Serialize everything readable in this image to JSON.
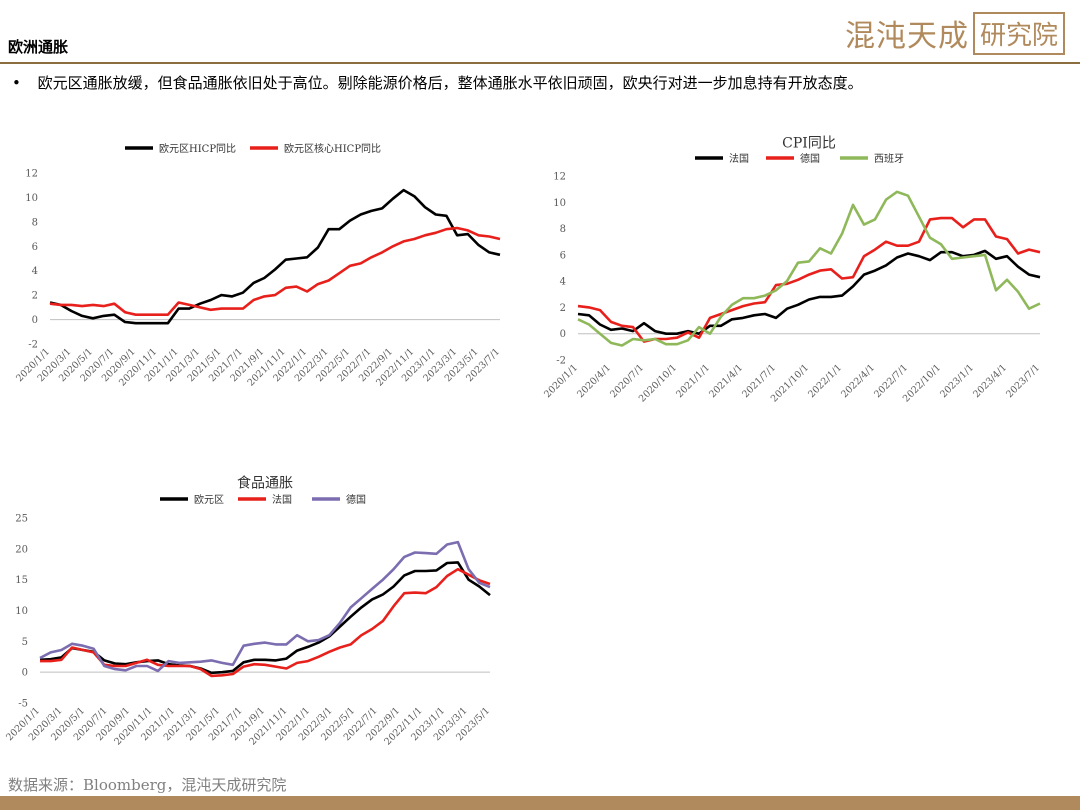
{
  "header": {
    "title": "欧洲通胀",
    "logo_main": "混沌天成",
    "logo_box": "研究院"
  },
  "bullet": {
    "marker": "•",
    "text": "欧元区通胀放缓，但食品通胀依旧处于高位。剔除能源价格后，整体通胀水平依旧顽固，欧央行对进一步加息持有开放态度。"
  },
  "source": "数据来源：Bloomberg，混沌天成研究院",
  "colors": {
    "accent": "#b08a5c",
    "black": "#000000",
    "red": "#e8201c",
    "green": "#8fb85a",
    "purple": "#7b6db0"
  },
  "chart_data": [
    {
      "type": "line",
      "title": "",
      "x_labels": [
        "2020/1/1",
        "2020/3/1",
        "2020/5/1",
        "2020/7/1",
        "2020/9/1",
        "2020/11/1",
        "2021/1/1",
        "2021/3/1",
        "2021/5/1",
        "2021/7/1",
        "2021/9/1",
        "2021/11/1",
        "2022/1/1",
        "2022/3/1",
        "2022/5/1",
        "2022/7/1",
        "2022/9/1",
        "2022/11/1",
        "2023/1/1",
        "2023/3/1",
        "2023/5/1",
        "2023/7/1"
      ],
      "ylim": [
        -2,
        12
      ],
      "yticks": [
        -2,
        0,
        2,
        4,
        6,
        8,
        10,
        12
      ],
      "legend_position": "top",
      "series": [
        {
          "name": "欧元区HICP同比",
          "color": "#000000",
          "values": [
            1.4,
            1.2,
            0.7,
            0.3,
            0.1,
            0.3,
            0.4,
            -0.2,
            -0.3,
            -0.3,
            -0.3,
            -0.3,
            0.9,
            0.9,
            1.3,
            1.6,
            2.0,
            1.9,
            2.2,
            3.0,
            3.4,
            4.1,
            4.9,
            5.0,
            5.1,
            5.9,
            7.4,
            7.4,
            8.1,
            8.6,
            8.9,
            9.1,
            9.9,
            10.6,
            10.1,
            9.2,
            8.6,
            8.5,
            6.9,
            7.0,
            6.1,
            5.5,
            5.3
          ]
        },
        {
          "name": "欧元区核心HICP同比",
          "color": "#e8201c",
          "values": [
            1.3,
            1.2,
            1.2,
            1.1,
            1.2,
            1.1,
            1.3,
            0.6,
            0.4,
            0.4,
            0.4,
            0.4,
            1.4,
            1.2,
            1.0,
            0.8,
            0.9,
            0.9,
            0.9,
            1.6,
            1.9,
            2.0,
            2.6,
            2.7,
            2.3,
            2.9,
            3.2,
            3.8,
            4.4,
            4.6,
            5.1,
            5.5,
            6.0,
            6.4,
            6.6,
            6.9,
            7.1,
            7.4,
            7.5,
            7.3,
            6.9,
            6.8,
            6.6
          ]
        }
      ]
    },
    {
      "type": "line",
      "title": "CPI同比",
      "x_labels": [
        "2020/1/1",
        "2020/4/1",
        "2020/7/1",
        "2020/10/1",
        "2021/1/1",
        "2021/4/1",
        "2021/7/1",
        "2021/10/1",
        "2022/1/1",
        "2022/4/1",
        "2022/7/1",
        "2022/10/1",
        "2023/1/1",
        "2023/4/1",
        "2023/7/1"
      ],
      "ylim": [
        -2,
        12
      ],
      "yticks": [
        -2,
        0,
        2,
        4,
        6,
        8,
        10,
        12
      ],
      "legend_position": "top",
      "series": [
        {
          "name": "法国",
          "color": "#000000",
          "values": [
            1.5,
            1.4,
            0.7,
            0.3,
            0.4,
            0.2,
            0.8,
            0.2,
            0.0,
            0.0,
            0.2,
            0.0,
            0.6,
            0.6,
            1.1,
            1.2,
            1.4,
            1.5,
            1.2,
            1.9,
            2.2,
            2.6,
            2.8,
            2.8,
            2.9,
            3.6,
            4.5,
            4.8,
            5.2,
            5.8,
            6.1,
            5.9,
            5.6,
            6.2,
            6.2,
            5.9,
            6.0,
            6.3,
            5.7,
            5.9,
            5.1,
            4.5,
            4.3
          ]
        },
        {
          "name": "德国",
          "color": "#e8201c",
          "values": [
            2.1,
            2.0,
            1.8,
            0.9,
            0.6,
            0.5,
            -0.6,
            -0.4,
            -0.4,
            -0.3,
            0.1,
            -0.3,
            1.2,
            1.5,
            1.8,
            2.1,
            2.3,
            2.4,
            3.7,
            3.8,
            4.1,
            4.5,
            4.8,
            4.9,
            4.2,
            4.3,
            5.9,
            6.4,
            7.0,
            6.7,
            6.7,
            7.0,
            8.7,
            8.8,
            8.8,
            8.1,
            8.7,
            8.7,
            7.4,
            7.2,
            6.1,
            6.4,
            6.2
          ]
        },
        {
          "name": "西班牙",
          "color": "#8fb85a",
          "values": [
            1.1,
            0.7,
            0.0,
            -0.7,
            -0.9,
            -0.4,
            -0.5,
            -0.4,
            -0.8,
            -0.8,
            -0.5,
            0.5,
            0.0,
            1.3,
            2.2,
            2.7,
            2.7,
            2.9,
            3.3,
            4.0,
            5.4,
            5.5,
            6.5,
            6.1,
            7.6,
            9.8,
            8.3,
            8.7,
            10.2,
            10.8,
            10.5,
            8.9,
            7.3,
            6.8,
            5.7,
            5.8,
            5.9,
            6.0,
            3.3,
            4.1,
            3.2,
            1.9,
            2.3
          ]
        }
      ]
    },
    {
      "type": "line",
      "title": "食品通胀",
      "x_labels": [
        "2020/1/1",
        "2020/3/1",
        "2020/5/1",
        "2020/7/1",
        "2020/9/1",
        "2020/11/1",
        "2021/1/1",
        "2021/3/1",
        "2021/5/1",
        "2021/7/1",
        "2021/9/1",
        "2021/11/1",
        "2022/1/1",
        "2022/3/1",
        "2022/5/1",
        "2022/7/1",
        "2022/9/1",
        "2022/11/1",
        "2023/1/1",
        "2023/3/1",
        "2023/5/1"
      ],
      "ylim": [
        -5,
        25
      ],
      "yticks": [
        -5,
        0,
        5,
        10,
        15,
        20,
        25
      ],
      "legend_position": "top",
      "series": [
        {
          "name": "欧元区",
          "color": "#000000",
          "values": [
            2.0,
            2.1,
            2.4,
            3.9,
            3.6,
            3.3,
            1.9,
            1.4,
            1.3,
            1.6,
            1.8,
            1.9,
            1.3,
            1.1,
            1.0,
            0.6,
            -0.1,
            0.0,
            0.2,
            1.6,
            2.0,
            2.0,
            1.9,
            2.2,
            3.5,
            4.1,
            4.8,
            5.8,
            7.4,
            9.0,
            10.5,
            11.8,
            12.6,
            13.9,
            15.7,
            16.4,
            16.4,
            16.5,
            17.7,
            17.8,
            15.0,
            13.9,
            12.5
          ]
        },
        {
          "name": "法国",
          "color": "#e8201c",
          "values": [
            1.8,
            1.8,
            2.0,
            4.0,
            3.6,
            3.2,
            1.2,
            1.0,
            1.0,
            1.5,
            2.0,
            1.2,
            1.0,
            1.0,
            1.0,
            0.5,
            -0.6,
            -0.5,
            -0.3,
            0.9,
            1.3,
            1.2,
            0.9,
            0.6,
            1.5,
            1.8,
            2.5,
            3.3,
            4.0,
            4.5,
            6.0,
            7.0,
            8.3,
            10.7,
            12.8,
            12.9,
            12.8,
            13.8,
            15.6,
            16.7,
            15.8,
            14.9,
            14.3
          ]
        },
        {
          "name": "德国",
          "color": "#7b6db0",
          "values": [
            2.3,
            3.2,
            3.6,
            4.6,
            4.3,
            3.8,
            1.0,
            0.5,
            0.3,
            1.0,
            1.0,
            0.2,
            1.8,
            1.5,
            1.6,
            1.7,
            1.9,
            1.5,
            1.2,
            4.3,
            4.6,
            4.8,
            4.5,
            4.5,
            6.0,
            5.0,
            5.2,
            6.0,
            8.0,
            10.5,
            12.0,
            13.5,
            15.0,
            16.7,
            18.7,
            19.4,
            19.3,
            19.2,
            20.7,
            21.1,
            16.7,
            14.5,
            13.8
          ]
        }
      ]
    }
  ]
}
